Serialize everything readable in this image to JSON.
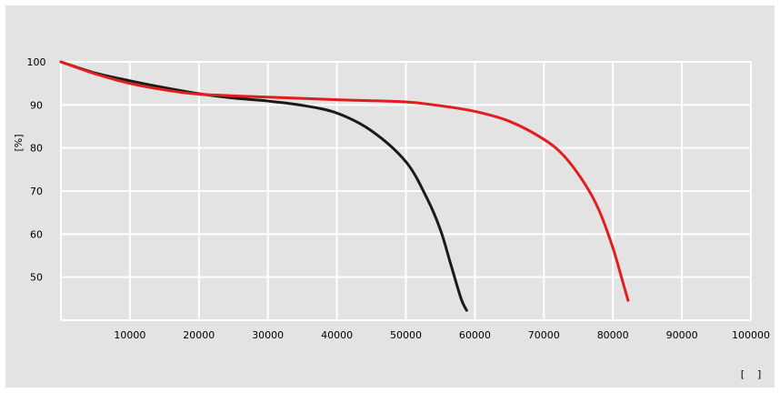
{
  "chart_data": {
    "type": "line",
    "title": "",
    "xlabel": "[    ]",
    "ylabel": "[%]",
    "xlim": [
      0,
      100000
    ],
    "ylim": [
      40,
      100
    ],
    "x_ticks": [
      10000,
      20000,
      30000,
      40000,
      50000,
      60000,
      70000,
      80000,
      90000,
      100000
    ],
    "y_ticks": [
      100,
      90,
      80,
      70,
      60,
      50
    ],
    "x_tick_labels": [
      "10000",
      "20000",
      "30000",
      "40000",
      "50000",
      "60000",
      "70000",
      "80000",
      "90000",
      "100000"
    ],
    "y_tick_labels": [
      "100",
      "90",
      "80",
      "70",
      "60",
      "50"
    ],
    "grid": true,
    "background_color": "#e3e3e3",
    "grid_color": "#ffffff",
    "series": [
      {
        "color": "#1a1a1a",
        "points": [
          [
            0,
            100
          ],
          [
            5000,
            97.4
          ],
          [
            10000,
            95.6
          ],
          [
            15000,
            94.0
          ],
          [
            20000,
            92.6
          ],
          [
            25000,
            91.6
          ],
          [
            30000,
            90.9
          ],
          [
            35000,
            89.9
          ],
          [
            40000,
            88.1
          ],
          [
            45000,
            84.0
          ],
          [
            50000,
            76.8
          ],
          [
            53000,
            68.5
          ],
          [
            55000,
            61.0
          ],
          [
            56500,
            53.0
          ],
          [
            58000,
            45.0
          ],
          [
            58800,
            42.3
          ]
        ]
      },
      {
        "color": "#e01e1e",
        "points": [
          [
            0,
            100
          ],
          [
            5000,
            97.2
          ],
          [
            10000,
            95.0
          ],
          [
            15000,
            93.5
          ],
          [
            20000,
            92.5
          ],
          [
            30000,
            91.8
          ],
          [
            40000,
            91.2
          ],
          [
            50000,
            90.7
          ],
          [
            55000,
            89.8
          ],
          [
            60000,
            88.5
          ],
          [
            65000,
            86.2
          ],
          [
            70000,
            82.0
          ],
          [
            73000,
            78.0
          ],
          [
            76000,
            71.5
          ],
          [
            78000,
            65.5
          ],
          [
            80000,
            56.8
          ],
          [
            81500,
            48.5
          ],
          [
            82200,
            44.6
          ]
        ]
      }
    ]
  }
}
